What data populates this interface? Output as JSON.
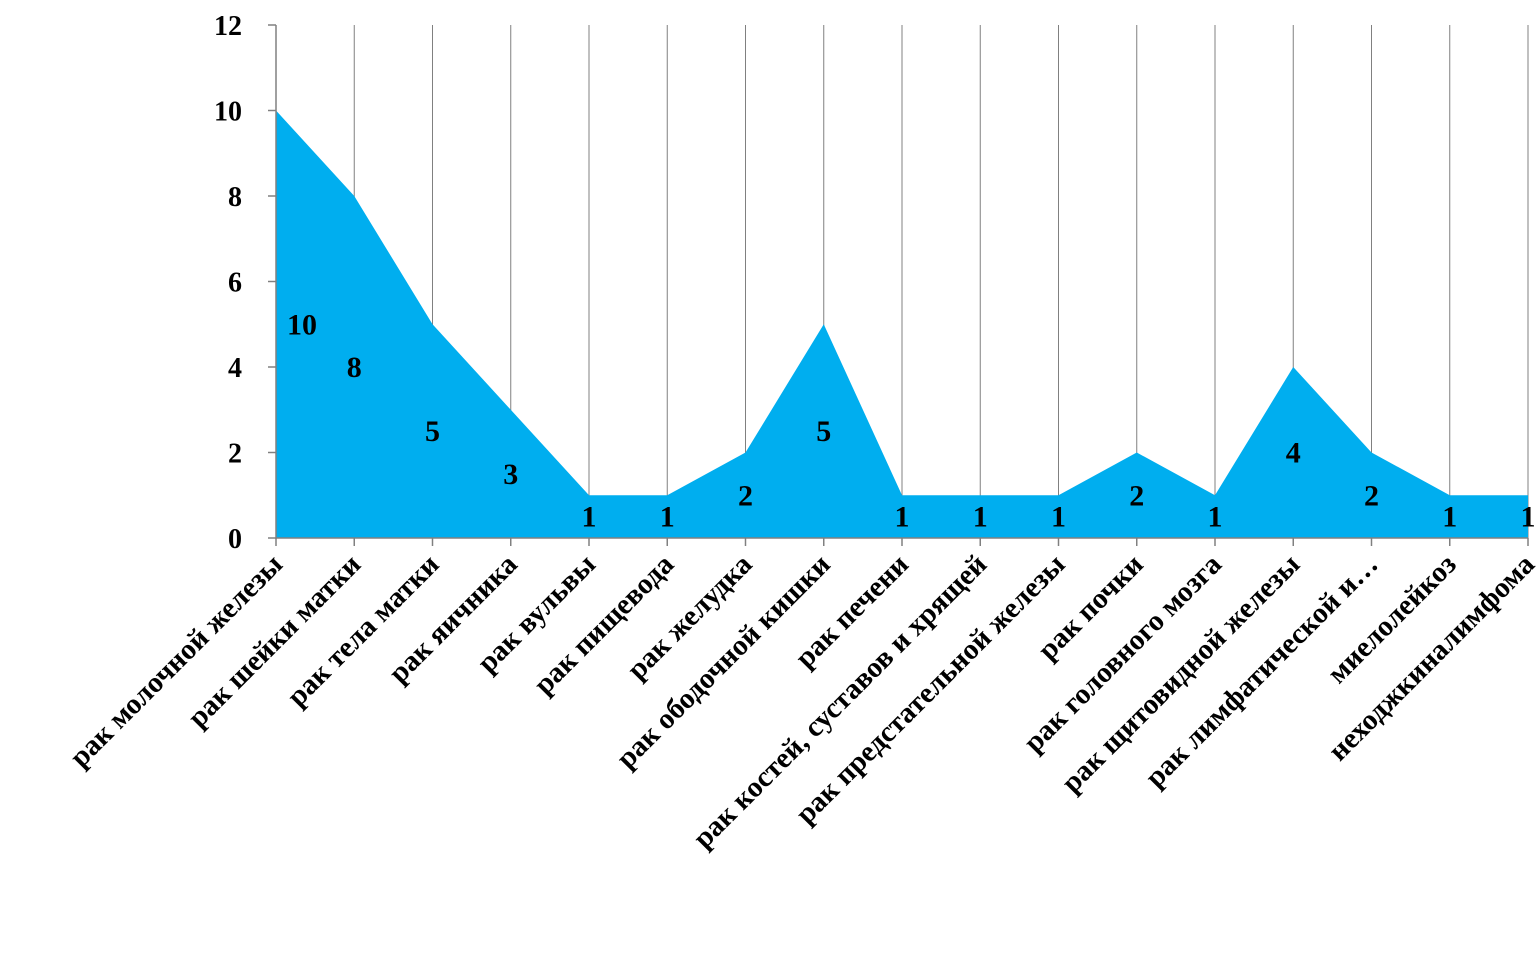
{
  "chart_data": {
    "type": "area",
    "categories": [
      "рак молочной железы",
      "рак шейки матки",
      "рак тела матки",
      "рак яичника",
      "рак вульвы",
      "рак пищевода",
      "рак желудка",
      "рак ободочной кишки",
      "рак печени",
      "рак костей, суставов и хрящей",
      "рак предстательной железы",
      "рак почки",
      "рак головного мозга",
      "рак щитовидной железы",
      "рак лимфатической и…",
      "миелолейкоз",
      "неходжкиналимфома"
    ],
    "values": [
      10,
      8,
      5,
      3,
      1,
      1,
      2,
      5,
      1,
      1,
      1,
      2,
      1,
      4,
      2,
      1,
      1
    ],
    "ylim": [
      0,
      12
    ],
    "yticks": [
      "0",
      "2",
      "4",
      "6",
      "8",
      "10",
      "12"
    ],
    "grid": "vertical",
    "legend": "none",
    "colors": {
      "fill": "#00aeef",
      "axis": "#808080",
      "grid": "#808080"
    }
  }
}
